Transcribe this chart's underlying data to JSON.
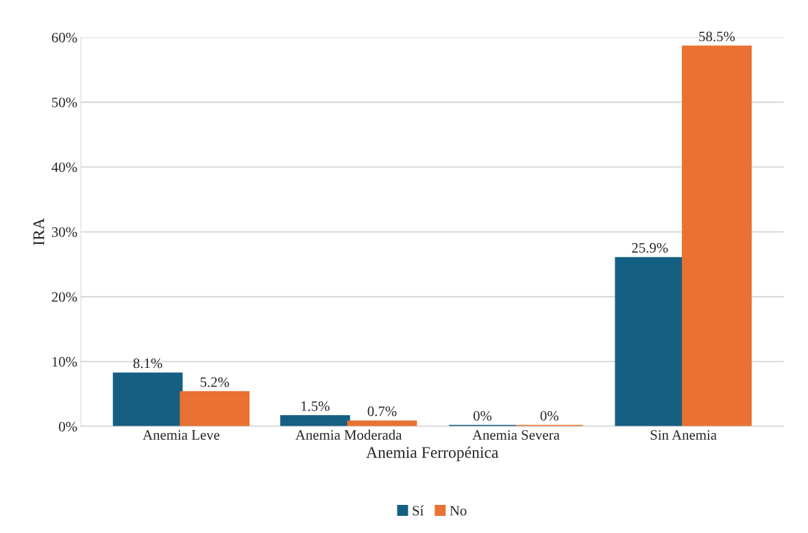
{
  "chart_data": {
    "type": "bar",
    "xlabel": "Anemia Ferropénica",
    "ylabel": "IRA",
    "categories": [
      "Anemia Leve",
      "Anemia Moderada",
      "Anemia Severa",
      "Sin Anemia"
    ],
    "series": [
      {
        "name": "Sí",
        "color": "#156082",
        "values": [
          8.1,
          1.5,
          0,
          25.9
        ],
        "value_labels": [
          "8.1%",
          "1.5%",
          "0%",
          "25.9%"
        ]
      },
      {
        "name": "No",
        "color": "#e97132",
        "values": [
          5.2,
          0.7,
          0,
          58.5
        ],
        "value_labels": [
          "5.2%",
          "0.7%",
          "0%",
          "58.5%"
        ]
      }
    ],
    "ylim": [
      0,
      60
    ],
    "yticks": [
      {
        "value": 0,
        "label": "0%"
      },
      {
        "value": 10,
        "label": "10%"
      },
      {
        "value": 20,
        "label": "20%"
      },
      {
        "value": 30,
        "label": "30%"
      },
      {
        "value": 40,
        "label": "40%"
      },
      {
        "value": 50,
        "label": "50%"
      },
      {
        "value": 60,
        "label": "60%"
      }
    ],
    "grid": "y",
    "legend": "bottom"
  }
}
